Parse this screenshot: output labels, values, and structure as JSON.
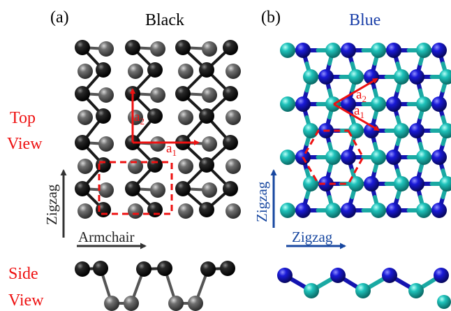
{
  "panels": {
    "a": {
      "tag": "(a)",
      "title": "Black"
    },
    "b": {
      "tag": "(b)",
      "title": "Blue"
    }
  },
  "row_labels": {
    "top_line1": "Top",
    "top_line2": "View",
    "side_line1": "Side",
    "side_line2": "View"
  },
  "vectors": {
    "a1_base": "a",
    "a1_sub": "1",
    "a2_base": "a",
    "a2_sub": "2"
  },
  "directions": {
    "a_vertical": "Zigzag",
    "a_horizontal": "Armchair",
    "b_vertical": "Zigzag",
    "b_horizontal": "Zigzag"
  },
  "colors": {
    "black_atom_upper": "#111111",
    "black_atom_lower": "#5f5f5f",
    "blue_atom_dark": "#1515c8",
    "blue_atom_cyan": "#19b7b0",
    "label_red": "#ee1111",
    "title_blue": "#1a3fa8",
    "arrow_dark": "#333333",
    "arrow_blue": "#1747a0"
  }
}
